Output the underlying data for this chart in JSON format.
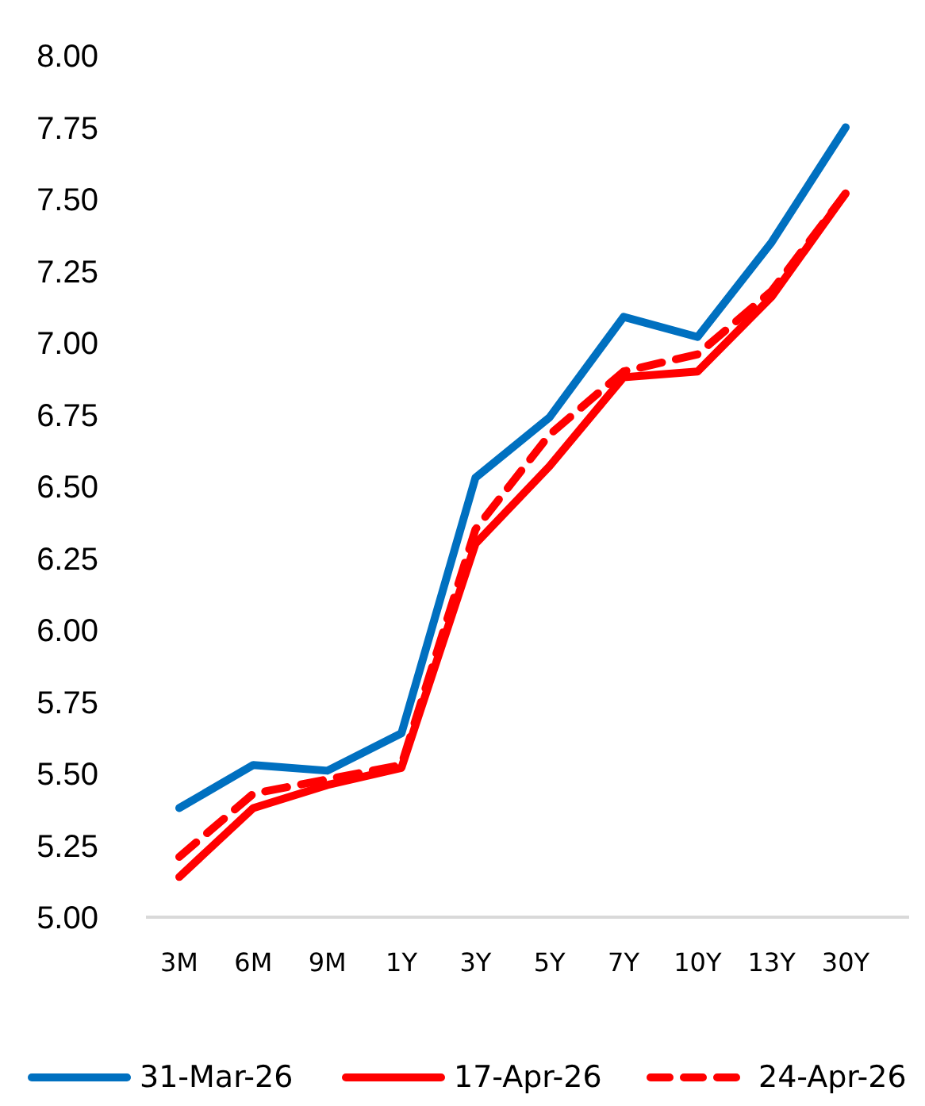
{
  "chart_data": {
    "type": "line",
    "categories": [
      "3M",
      "6M",
      "9M",
      "1Y",
      "3Y",
      "5Y",
      "7Y",
      "10Y",
      "13Y",
      "30Y"
    ],
    "series": [
      {
        "name": "31-Mar-26",
        "color": "#0070c0",
        "line_style": "solid",
        "values": [
          5.38,
          5.53,
          5.51,
          5.64,
          6.53,
          6.74,
          7.09,
          7.02,
          7.35,
          7.75
        ]
      },
      {
        "name": "17-Apr-26",
        "color": "#ff0000",
        "line_style": "solid",
        "values": [
          5.14,
          5.38,
          5.46,
          5.52,
          6.3,
          6.57,
          6.88,
          6.9,
          7.16,
          7.52
        ]
      },
      {
        "name": "24-Apr-26",
        "color": "#ff0000",
        "line_style": "dashed",
        "values": [
          5.21,
          5.43,
          5.48,
          5.53,
          6.35,
          6.68,
          6.9,
          6.96,
          7.18,
          7.52
        ]
      }
    ],
    "ylim": [
      5,
      8
    ],
    "yticks": [
      {
        "value": 5,
        "label": "5.00"
      },
      {
        "value": 5.25,
        "label": "5.25"
      },
      {
        "value": 5.5,
        "label": "5.50"
      },
      {
        "value": 5.75,
        "label": "5.75"
      },
      {
        "value": 6,
        "label": "6.00"
      },
      {
        "value": 6.25,
        "label": "6.25"
      },
      {
        "value": 6.5,
        "label": "6.50"
      },
      {
        "value": 6.75,
        "label": "6.75"
      },
      {
        "value": 7,
        "label": "7.00"
      },
      {
        "value": 7.25,
        "label": "7.25"
      },
      {
        "value": 7.5,
        "label": "7.50"
      },
      {
        "value": 7.75,
        "label": "7.75"
      },
      {
        "value": 8,
        "label": "8.00"
      }
    ],
    "grid": false,
    "legend": "bottom",
    "marker": "none"
  }
}
